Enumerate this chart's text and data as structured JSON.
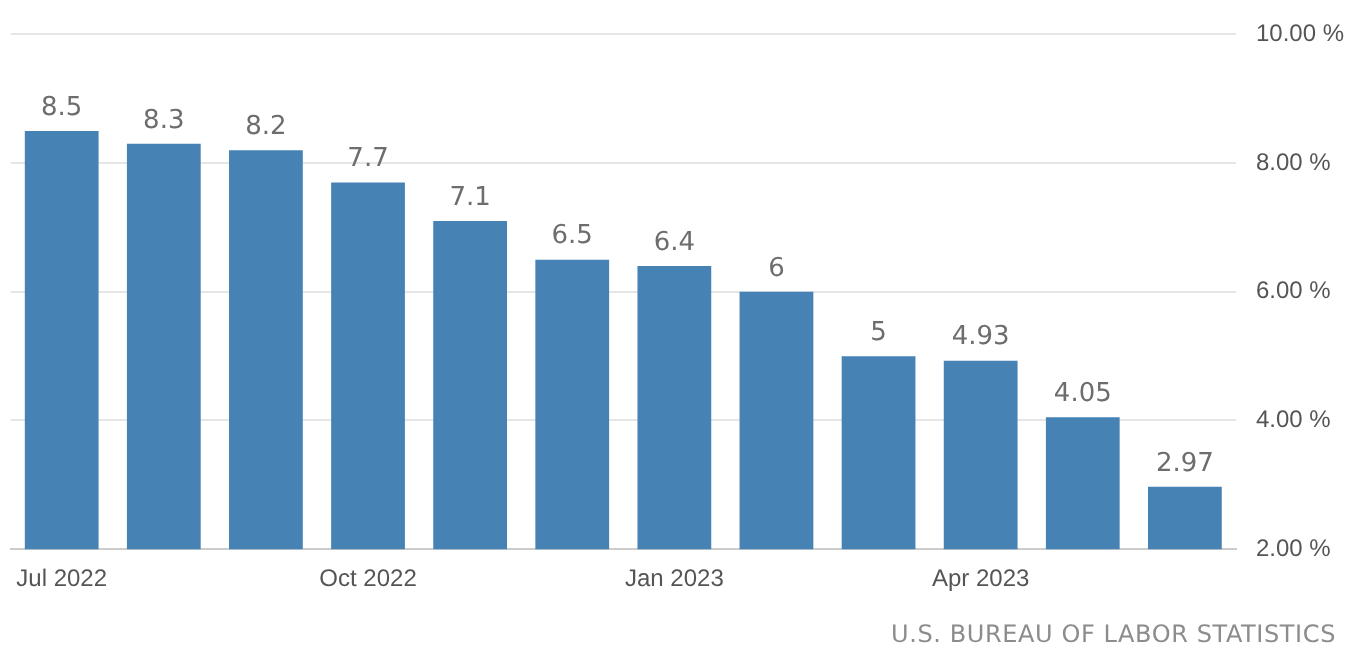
{
  "chart_data": {
    "type": "bar",
    "categories": [
      "Jul 2022",
      null,
      null,
      "Oct 2022",
      null,
      null,
      "Jan 2023",
      null,
      null,
      "Apr 2023",
      null,
      null
    ],
    "values": [
      8.5,
      8.3,
      8.2,
      7.7,
      7.1,
      6.5,
      6.4,
      6,
      5,
      4.93,
      4.05,
      2.97
    ],
    "color": "#4682b4",
    "ylim": [
      2,
      10
    ],
    "yticks": [
      {
        "value": 2,
        "label": "2.00 %"
      },
      {
        "value": 4,
        "label": "4.00 %"
      },
      {
        "value": 6,
        "label": "6.00 %"
      },
      {
        "value": 8,
        "label": "8.00 %"
      },
      {
        "value": 10,
        "label": "10.00 %"
      }
    ],
    "grid": "y",
    "data_labels": true,
    "annotations": [
      "U.S. BUREAU OF LABOR STATISTICS"
    ]
  }
}
